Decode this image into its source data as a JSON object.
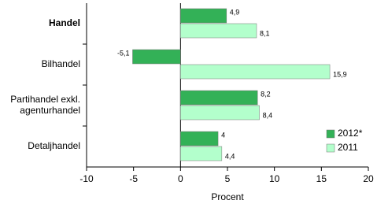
{
  "chart_data": {
    "type": "bar",
    "orientation": "horizontal",
    "xlabel": "Procent",
    "categories": [
      "Handel",
      "Bilhandel",
      "Partihandel exkl.\nagenturhandel",
      "Detaljhandel"
    ],
    "series": [
      {
        "name": "2012*",
        "color": "#33b157",
        "values": [
          4.9,
          -5.1,
          8.2,
          4
        ],
        "value_labels": [
          "4,9",
          "-5,1",
          "8,2",
          "4"
        ]
      },
      {
        "name": "2011",
        "color": "#b3ffcc",
        "values": [
          8.1,
          15.9,
          8.4,
          4.4
        ],
        "value_labels": [
          "8,1",
          "15,9",
          "8,4",
          "4,4"
        ]
      }
    ],
    "xlim": [
      -10,
      20
    ],
    "xticks": [
      -10,
      -5,
      0,
      5,
      10,
      15,
      20
    ],
    "grid": false,
    "legend": "lower right"
  }
}
